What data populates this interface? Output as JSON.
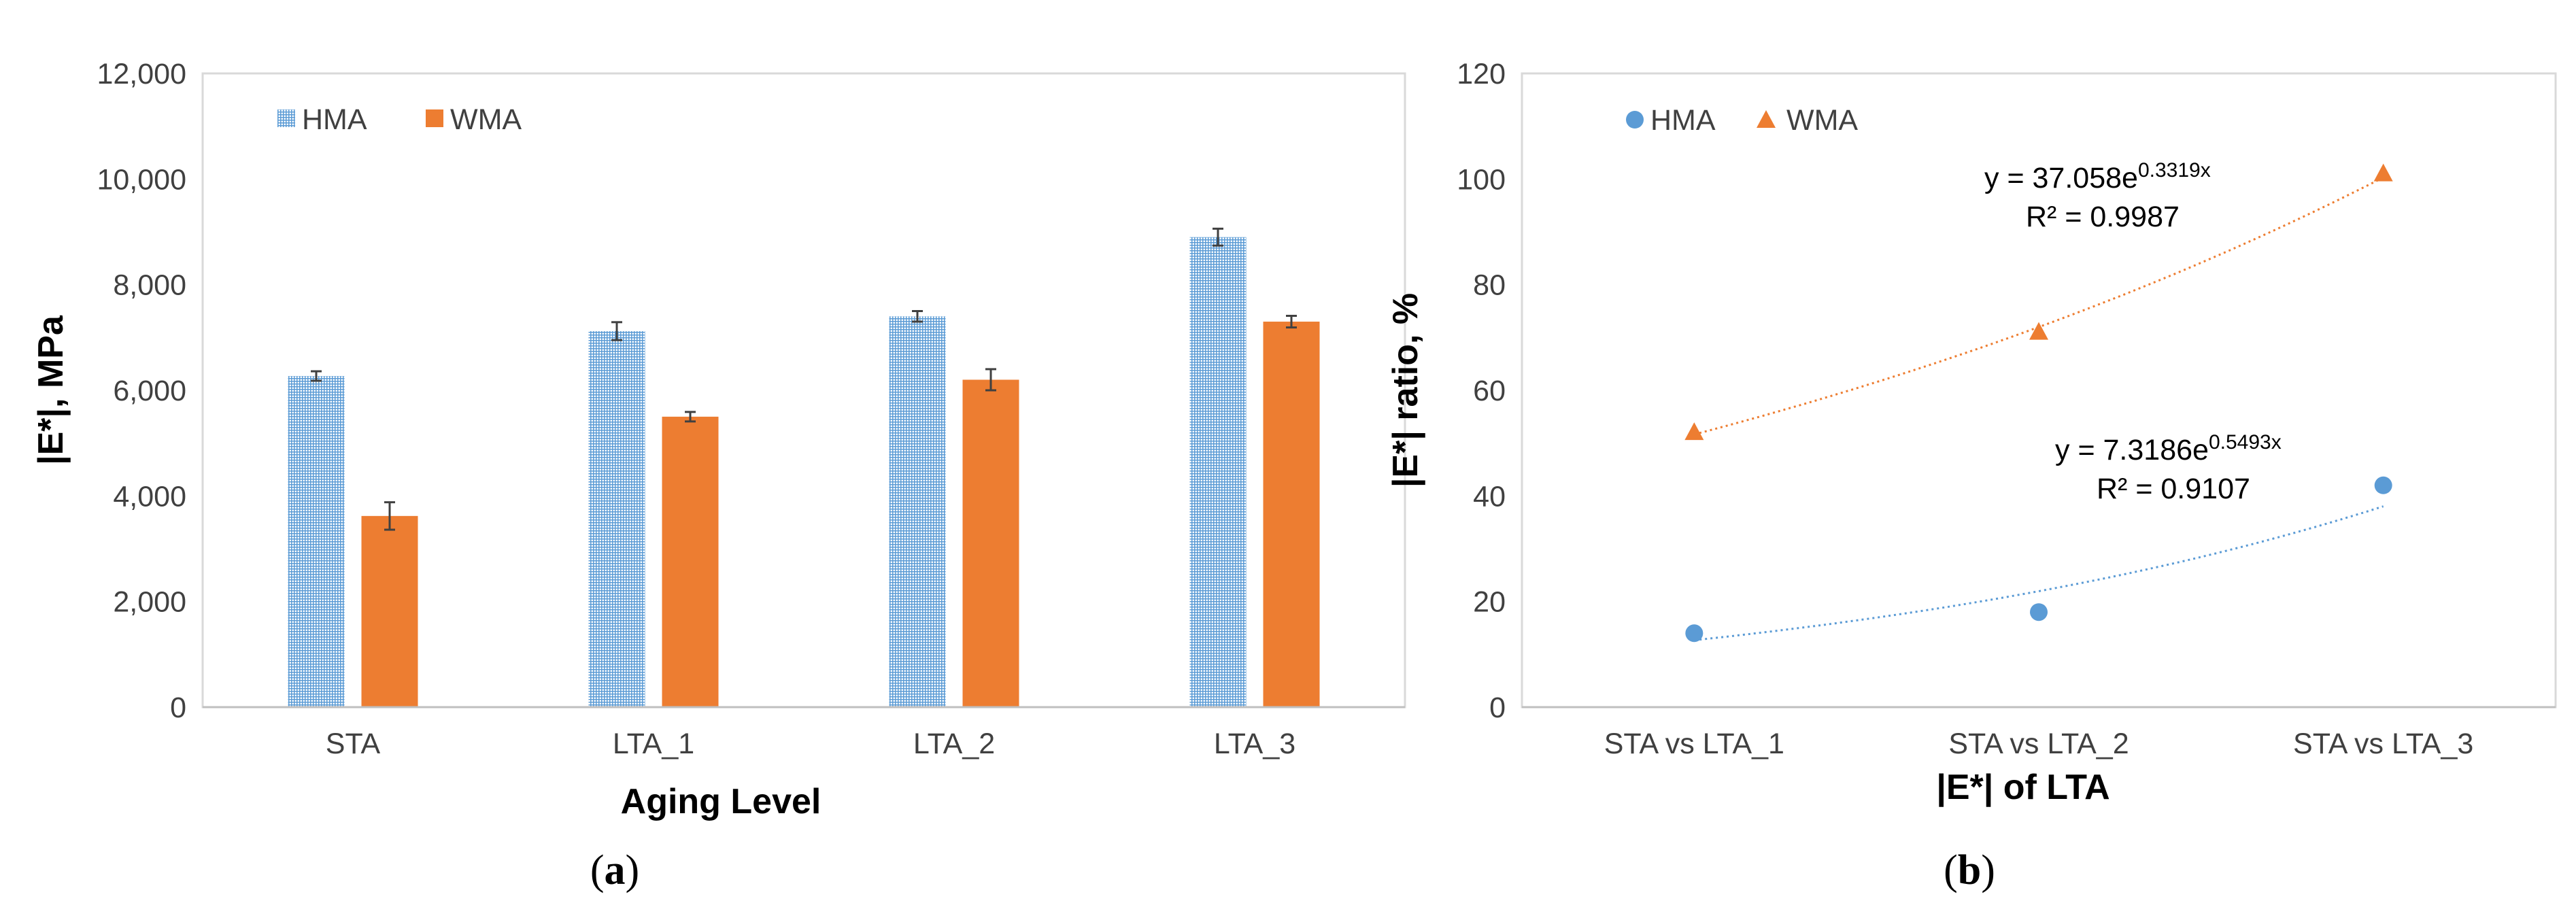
{
  "chart_data": [
    {
      "type": "bar",
      "panel_label": "a",
      "categories": [
        "STA",
        "LTA_1",
        "LTA_2",
        "LTA_3"
      ],
      "series": [
        {
          "name": "HMA",
          "values": [
            6270,
            7120,
            7400,
            8900
          ],
          "errors": [
            90,
            170,
            100,
            160
          ],
          "color": "#5b9bd5",
          "pattern": "grid"
        },
        {
          "name": "WMA",
          "values": [
            3620,
            5500,
            6200,
            7300
          ],
          "errors": [
            260,
            90,
            200,
            110
          ],
          "color": "#ed7d31",
          "pattern": "solid"
        }
      ],
      "xlabel": "Aging Level",
      "ylabel": "|E*|, MPa",
      "ylim": [
        0,
        12000
      ],
      "yticks": [
        "0",
        "2,000",
        "4,000",
        "6,000",
        "8,000",
        "10,000",
        "12,000"
      ],
      "legend": "top-left",
      "grid": false
    },
    {
      "type": "scatter",
      "panel_label": "b",
      "categories": [
        "STA vs LTA_1",
        "STA vs LTA_2",
        "STA vs LTA_3"
      ],
      "series": [
        {
          "name": "HMA",
          "values": [
            14,
            18,
            42
          ],
          "marker": "circle",
          "color": "#5b9bd5",
          "trendline": {
            "a": 7.3186,
            "b": 0.5493,
            "equation_base": "y = 7.3186e",
            "equation_exp": "0.5493x",
            "r2": "R² = 0.9107"
          }
        },
        {
          "name": "WMA",
          "values": [
            52,
            71,
            101
          ],
          "marker": "triangle",
          "color": "#ed7d31",
          "trendline": {
            "a": 37.058,
            "b": 0.3319,
            "equation_base": "y = 37.058e",
            "equation_exp": "0.3319x",
            "r2": "R² = 0.9987"
          }
        }
      ],
      "xlabel": "|E*| of LTA",
      "ylabel": "|E*| ratio, %",
      "ylim": [
        0,
        120
      ],
      "yticks": [
        "0",
        "20",
        "40",
        "60",
        "80",
        "100",
        "120"
      ],
      "legend": "top-left",
      "grid": false
    }
  ]
}
